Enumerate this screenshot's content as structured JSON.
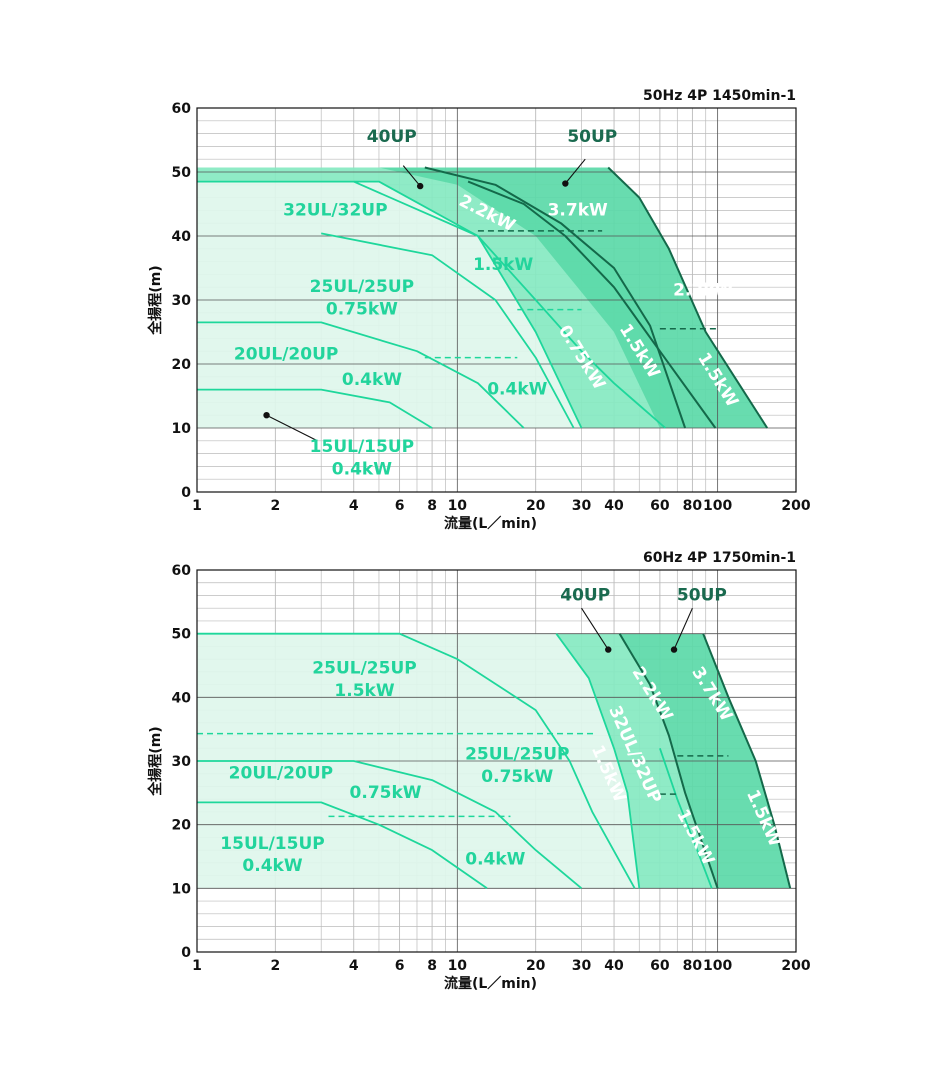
{
  "colors": {
    "light": "#def6eb",
    "mid": "#86e9c1",
    "dark": "#5bd9a8",
    "line": "#1ed79b",
    "darkline": "#14694a",
    "label_light": "#22d49c",
    "label_dark": "#1a6a4f",
    "label_white": "#ffffff",
    "grid_major": "#555555",
    "grid_minor": "#bbbbbb"
  },
  "chart_data": [
    {
      "type": "area",
      "title": "50Hz 4P 1450min-1",
      "xlabel": "流量(L／min)",
      "ylabel": "全揚程(m)",
      "xscale": "log",
      "xlim": [
        1,
        200
      ],
      "ylim": [
        0,
        60
      ],
      "xticks": [
        "1",
        "2",
        "4",
        "6",
        "8",
        "10",
        "20",
        "30",
        "40",
        "60",
        "80",
        "100",
        "200"
      ],
      "yticks": [
        "0",
        "10",
        "20",
        "30",
        "40",
        "50",
        "60"
      ],
      "grid": true,
      "regions": [
        {
          "name": "40UP",
          "fill": "mid",
          "points": [
            [
              1,
              50.7
            ],
            [
              7.5,
              50.7
            ],
            [
              14,
              48
            ],
            [
              25,
              42
            ],
            [
              40,
              35
            ],
            [
              55,
              26
            ],
            [
              75,
              10
            ],
            [
              30,
              10
            ],
            [
              20,
              25
            ],
            [
              12,
              40
            ],
            [
              5,
              48.5
            ],
            [
              1,
              48.5
            ]
          ]
        },
        {
          "name": "50UP",
          "fill": "dark",
          "points": [
            [
              5,
              50.7
            ],
            [
              38,
              50.7
            ],
            [
              50,
              46
            ],
            [
              65,
              38
            ],
            [
              90,
              25
            ],
            [
              155,
              10
            ],
            [
              60,
              10
            ],
            [
              40,
              25
            ],
            [
              20,
              40
            ],
            [
              10,
              48
            ],
            [
              5,
              50.7
            ]
          ]
        },
        {
          "name": "32UL/32UP",
          "fill": "light",
          "points": [
            [
              1,
              48.5
            ],
            [
              5,
              48.5
            ],
            [
              12,
              40
            ],
            [
              20,
              25
            ],
            [
              30,
              10
            ],
            [
              1,
              10
            ]
          ]
        }
      ],
      "curves": [
        {
          "name": "32UL/32UP 1.5kW",
          "stroke": "line",
          "points": [
            [
              1,
              48.5
            ],
            [
              5,
              48.5
            ],
            [
              12,
              40
            ],
            [
              20,
              25
            ],
            [
              30,
              10
            ]
          ]
        },
        {
          "name": "32UL/32UP 0.75kW",
          "stroke": "line",
          "points": [
            [
              3,
              40.4
            ],
            [
              8,
              37
            ],
            [
              14,
              30
            ],
            [
              20,
              21
            ],
            [
              28,
              10
            ]
          ]
        },
        {
          "name": "25UL/25UP 0.4kW",
          "stroke": "line",
          "points": [
            [
              1,
              26.5
            ],
            [
              3,
              26.5
            ],
            [
              7,
              22
            ],
            [
              12,
              17
            ],
            [
              18,
              10
            ]
          ]
        },
        {
          "name": "20UL/20UP 0.4kW",
          "stroke": "line",
          "points": [
            [
              1,
              16
            ],
            [
              3,
              16
            ],
            [
              5.5,
              14
            ],
            [
              8,
              10
            ]
          ]
        },
        {
          "name": "40UP 2.2kW",
          "stroke": "darkline",
          "points": [
            [
              7.5,
              50.7
            ],
            [
              14,
              48
            ],
            [
              25,
              42
            ],
            [
              40,
              35
            ],
            [
              55,
              26
            ],
            [
              75,
              10
            ]
          ]
        },
        {
          "name": "50UP 3.7kW",
          "stroke": "darkline",
          "points": [
            [
              38,
              50.7
            ],
            [
              50,
              46
            ],
            [
              65,
              38
            ],
            [
              90,
              25
            ],
            [
              155,
              10
            ]
          ]
        },
        {
          "name": "50UP 2.2kW",
          "stroke": "darkline",
          "points": [
            [
              11,
              48.5
            ],
            [
              18,
              45
            ],
            [
              26,
              40
            ],
            [
              40,
              32
            ],
            [
              60,
              22
            ],
            [
              98,
              10
            ]
          ]
        },
        {
          "name": "40UP 1.5kW",
          "stroke": "line",
          "points": [
            [
              4,
              48.5
            ],
            [
              12,
              40
            ],
            [
              20,
              30
            ],
            [
              30,
              22
            ],
            [
              40,
              17
            ],
            [
              63,
              10
            ]
          ]
        }
      ],
      "dashes": [
        {
          "stroke": "darkline",
          "y": 40.8,
          "x": [
            12,
            36
          ]
        },
        {
          "stroke": "line",
          "y": 28.5,
          "x": [
            17,
            30
          ]
        },
        {
          "stroke": "line",
          "y": 21,
          "x": [
            7.5,
            17
          ]
        },
        {
          "stroke": "darkline",
          "y": 25.5,
          "x": [
            60,
            100
          ]
        }
      ],
      "labels": [
        {
          "text": "32UL/32UP",
          "x": 3.4,
          "y": 44,
          "color": "label_light"
        },
        {
          "text": "25UL/25UP",
          "x": 4.3,
          "y": 32,
          "color": "label_light"
        },
        {
          "text": "0.75kW",
          "x": 4.3,
          "y": 28.5,
          "color": "label_light"
        },
        {
          "text": "20UL/20UP",
          "x": 2.2,
          "y": 21.5,
          "color": "label_light"
        },
        {
          "text": "0.4kW",
          "x": 4.7,
          "y": 17.5,
          "color": "label_light"
        },
        {
          "text": "15UL/15UP",
          "x": 4.3,
          "y": 7,
          "color": "label_light"
        },
        {
          "text": "0.4kW",
          "x": 4.3,
          "y": 3.5,
          "color": "label_light"
        },
        {
          "text": "1.5kW",
          "x": 15,
          "y": 35.5,
          "color": "label_light"
        },
        {
          "text": "0.4kW",
          "x": 17,
          "y": 16,
          "color": "label_light"
        },
        {
          "text": "40UP",
          "x": 5.6,
          "y": 55.5,
          "color": "label_dark"
        },
        {
          "text": "50UP",
          "x": 33,
          "y": 55.5,
          "color": "label_dark"
        },
        {
          "text": "2.2kW",
          "x": 13,
          "y": 43.5,
          "color": "label_white",
          "rotate": 27
        },
        {
          "text": "3.7kW",
          "x": 29,
          "y": 44,
          "color": "label_white"
        },
        {
          "text": "2.2kW",
          "x": 88,
          "y": 31.5,
          "color": "label_white"
        },
        {
          "text": "0.75kW",
          "x": 30,
          "y": 21,
          "color": "label_white",
          "rotate": 58
        },
        {
          "text": "1.5kW",
          "x": 50,
          "y": 22,
          "color": "label_white",
          "rotate": 58
        },
        {
          "text": "1.5kW",
          "x": 100,
          "y": 17.5,
          "color": "label_white",
          "rotate": 58
        }
      ],
      "pointers": [
        {
          "dot": [
            7.2,
            47.8
          ],
          "end": [
            6.2,
            51
          ]
        },
        {
          "dot": [
            26,
            48.2
          ],
          "end": [
            31,
            52
          ]
        },
        {
          "dot": [
            1.85,
            12
          ],
          "end": [
            2.9,
            8
          ]
        }
      ]
    },
    {
      "type": "area",
      "title": "60Hz 4P 1750min-1",
      "xlabel": "流量(L／min)",
      "ylabel": "全揚程(m)",
      "xscale": "log",
      "xlim": [
        1,
        200
      ],
      "ylim": [
        0,
        60
      ],
      "xticks": [
        "1",
        "2",
        "4",
        "6",
        "8",
        "10",
        "20",
        "30",
        "40",
        "60",
        "80",
        "100",
        "200"
      ],
      "yticks": [
        "0",
        "10",
        "20",
        "30",
        "40",
        "50",
        "60"
      ],
      "grid": true,
      "regions": [
        {
          "name": "32UL/32UP",
          "fill": "light",
          "points": [
            [
              1,
              50
            ],
            [
              24,
              50
            ],
            [
              32,
              43
            ],
            [
              40,
              32
            ],
            [
              45,
              25
            ],
            [
              50,
              10
            ],
            [
              1,
              10
            ]
          ]
        },
        {
          "name": "40UP",
          "fill": "mid",
          "points": [
            [
              24,
              50
            ],
            [
              42,
              50
            ],
            [
              55,
              42
            ],
            [
              65,
              34
            ],
            [
              75,
              25
            ],
            [
              100,
              10
            ],
            [
              50,
              10
            ],
            [
              45,
              25
            ],
            [
              40,
              32
            ],
            [
              32,
              43
            ],
            [
              24,
              50
            ]
          ]
        },
        {
          "name": "50UP",
          "fill": "dark",
          "points": [
            [
              42,
              50
            ],
            [
              88,
              50
            ],
            [
              110,
              40
            ],
            [
              140,
              30
            ],
            [
              165,
              20
            ],
            [
              190,
              10
            ],
            [
              100,
              10
            ],
            [
              75,
              25
            ],
            [
              65,
              34
            ],
            [
              55,
              42
            ],
            [
              42,
              50
            ]
          ]
        }
      ],
      "curves": [
        {
          "name": "25UL/25UP 1.5kW",
          "stroke": "line",
          "points": [
            [
              1,
              50
            ],
            [
              6,
              50
            ],
            [
              10,
              46
            ],
            [
              20,
              38
            ],
            [
              27,
              30
            ],
            [
              33,
              22
            ],
            [
              48,
              10
            ]
          ]
        },
        {
          "name": "25UL/25UP 0.75kW",
          "stroke": "line",
          "points": [
            [
              1,
              30
            ],
            [
              4,
              30
            ],
            [
              8,
              27
            ],
            [
              14,
              22
            ],
            [
              20,
              16
            ],
            [
              30,
              10
            ]
          ]
        },
        {
          "name": "20UL/20UP 0.4kW",
          "stroke": "line",
          "points": [
            [
              1,
              23.5
            ],
            [
              3,
              23.5
            ],
            [
              5,
              20
            ],
            [
              8,
              16
            ],
            [
              13,
              10
            ]
          ]
        },
        {
          "name": "32UL/32UP",
          "stroke": "line",
          "points": [
            [
              24,
              50
            ],
            [
              32,
              43
            ],
            [
              40,
              32
            ],
            [
              45,
              25
            ],
            [
              50,
              10
            ]
          ]
        },
        {
          "name": "40UP 2.2kW",
          "stroke": "darkline",
          "points": [
            [
              42,
              50
            ],
            [
              55,
              42
            ],
            [
              65,
              34
            ],
            [
              75,
              25
            ],
            [
              100,
              10
            ]
          ]
        },
        {
          "name": "50UP 3.7kW",
          "stroke": "darkline",
          "points": [
            [
              88,
              50
            ],
            [
              110,
              40
            ],
            [
              140,
              30
            ],
            [
              165,
              20
            ],
            [
              190,
              10
            ]
          ]
        },
        {
          "name": "40UP 1.5kW",
          "stroke": "line",
          "points": [
            [
              60,
              32
            ],
            [
              70,
              24
            ],
            [
              80,
              18
            ],
            [
              95,
              10
            ]
          ]
        }
      ],
      "dashes": [
        {
          "stroke": "line",
          "y": 34.3,
          "x": [
            1,
            34
          ]
        },
        {
          "stroke": "line",
          "y": 21.3,
          "x": [
            3.2,
            16
          ]
        },
        {
          "stroke": "darkline",
          "y": 30.8,
          "x": [
            70,
            110
          ]
        },
        {
          "stroke": "darkline",
          "y": 24.8,
          "x": [
            60,
            70
          ]
        }
      ],
      "labels": [
        {
          "text": "25UL/25UP",
          "x": 4.4,
          "y": 44.5,
          "color": "label_light"
        },
        {
          "text": "1.5kW",
          "x": 4.4,
          "y": 41,
          "color": "label_light"
        },
        {
          "text": "20UL/20UP",
          "x": 2.1,
          "y": 28,
          "color": "label_light"
        },
        {
          "text": "0.75kW",
          "x": 5.3,
          "y": 25,
          "color": "label_light"
        },
        {
          "text": "25UL/25UP",
          "x": 17,
          "y": 31,
          "color": "label_light"
        },
        {
          "text": "0.75kW",
          "x": 17,
          "y": 27.5,
          "color": "label_light"
        },
        {
          "text": "15UL/15UP",
          "x": 1.95,
          "y": 17,
          "color": "label_light"
        },
        {
          "text": "0.4kW",
          "x": 1.95,
          "y": 13.5,
          "color": "label_light"
        },
        {
          "text": "0.4kW",
          "x": 14,
          "y": 14.5,
          "color": "label_light"
        },
        {
          "text": "40UP",
          "x": 31,
          "y": 56,
          "color": "label_dark"
        },
        {
          "text": "50UP",
          "x": 87,
          "y": 56,
          "color": "label_dark"
        },
        {
          "text": "2.2kW",
          "x": 56,
          "y": 40.5,
          "color": "label_white",
          "rotate": 58
        },
        {
          "text": "3.7kW",
          "x": 95,
          "y": 40.5,
          "color": "label_white",
          "rotate": 58
        },
        {
          "text": "32UL/32UP",
          "x": 48,
          "y": 31,
          "color": "label_white",
          "rotate": 66
        },
        {
          "text": "1.5kW",
          "x": 38,
          "y": 28,
          "color": "label_white",
          "rotate": 66
        },
        {
          "text": "1.5kW",
          "x": 82,
          "y": 18,
          "color": "label_white",
          "rotate": 62
        },
        {
          "text": "1.5kW",
          "x": 150,
          "y": 21,
          "color": "label_white",
          "rotate": 66
        }
      ],
      "pointers": [
        {
          "dot": [
            38,
            47.5
          ],
          "end": [
            30,
            54
          ]
        },
        {
          "dot": [
            68,
            47.5
          ],
          "end": [
            80,
            54
          ]
        }
      ]
    }
  ]
}
